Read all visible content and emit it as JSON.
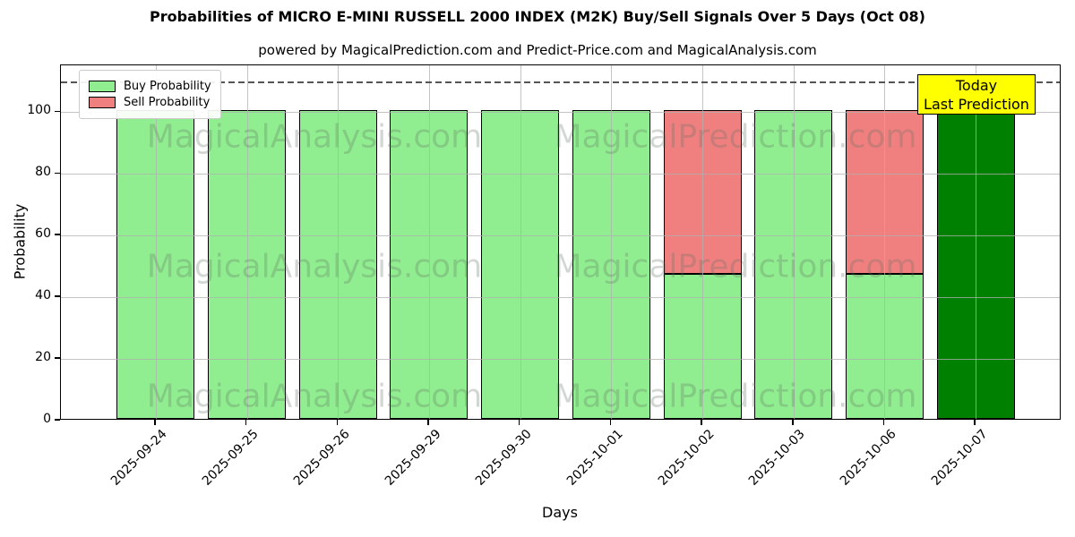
{
  "header": {
    "title": "Probabilities of MICRO E-MINI RUSSELL 2000 INDEX (M2K) Buy/Sell Signals Over 5 Days (Oct 08)",
    "subtitle": "powered by MagicalPrediction.com and Predict-Price.com and MagicalAnalysis.com"
  },
  "legend": {
    "items": [
      {
        "label": "Buy Probability",
        "color": "#90ee90"
      },
      {
        "label": "Sell Probability",
        "color": "#f08080"
      }
    ]
  },
  "annotation": {
    "line1": "Today",
    "line2": "Last Prediction",
    "bg_color": "#ffff00"
  },
  "watermarks": {
    "texts": [
      "MagicalAnalysis.com",
      "MagicalPrediction.com"
    ]
  },
  "axes": {
    "xlabel": "Days",
    "ylabel": "Probability",
    "yticks": [
      0,
      20,
      40,
      60,
      80,
      100
    ]
  },
  "chart_data": {
    "type": "bar",
    "stacked": true,
    "title": "Probabilities of MICRO E-MINI RUSSELL 2000 INDEX (M2K) Buy/Sell Signals Over 5 Days (Oct 08)",
    "xlabel": "Days",
    "ylabel": "Probability",
    "ylim": [
      0,
      115
    ],
    "grid": true,
    "legend_position": "upper left",
    "dashed_line_y": 110,
    "categories": [
      "2025-09-24",
      "2025-09-25",
      "2025-09-26",
      "2025-09-29",
      "2025-09-30",
      "2025-10-01",
      "2025-10-02",
      "2025-10-03",
      "2025-10-06",
      "2025-10-07"
    ],
    "series": [
      {
        "name": "Buy Probability",
        "color": "#90ee90",
        "values": [
          100,
          100,
          100,
          100,
          100,
          100,
          47,
          100,
          47,
          100
        ]
      },
      {
        "name": "Sell Probability",
        "color": "#f08080",
        "values": [
          0,
          0,
          0,
          0,
          0,
          0,
          53,
          0,
          53,
          0
        ]
      }
    ],
    "today_index": 9,
    "today_bar_color": "#008000"
  }
}
